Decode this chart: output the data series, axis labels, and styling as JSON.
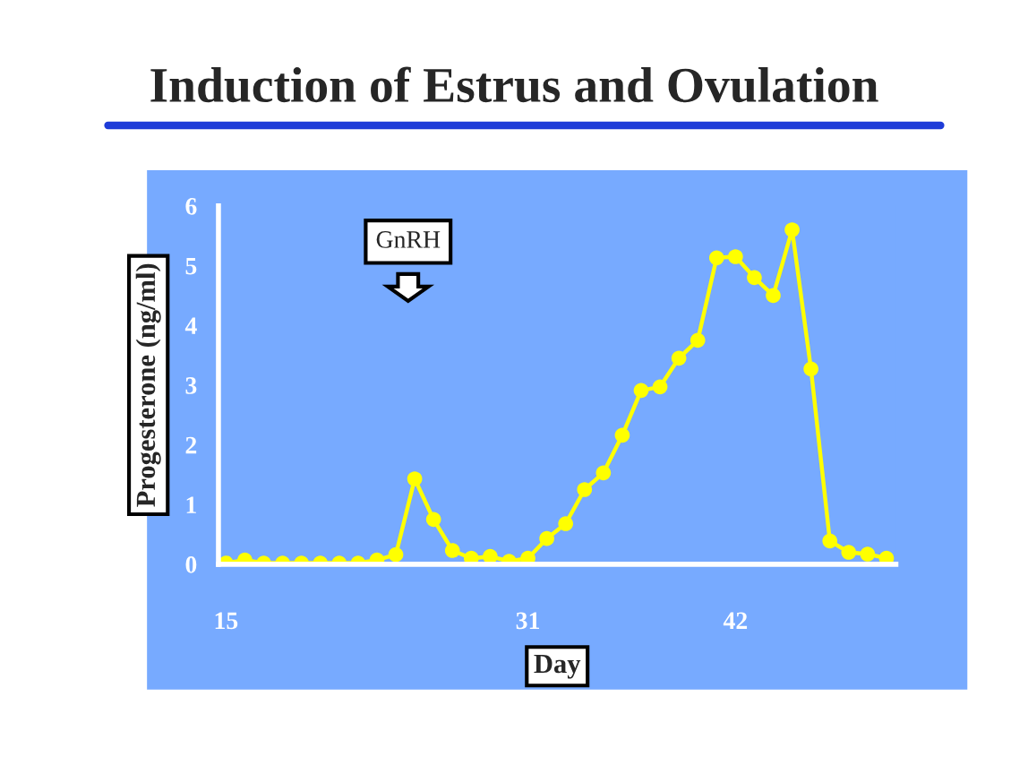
{
  "chart_data": {
    "type": "line",
    "title": "Induction of Estrus and Ovulation",
    "xlabel": "Day",
    "ylabel": "Progesterone (ng/ml)",
    "x": [
      15,
      16,
      17,
      18,
      19,
      20,
      21,
      22,
      23,
      24,
      25,
      26,
      27,
      28,
      29,
      30,
      31,
      32,
      33,
      34,
      35,
      36,
      37,
      38,
      39,
      40,
      41,
      42,
      43,
      44,
      45,
      46,
      47,
      48,
      49,
      50
    ],
    "series": [
      {
        "color": "#ffff00",
        "values": [
          0.02,
          0.07,
          0.02,
          0.02,
          0.02,
          0.02,
          0.02,
          0.02,
          0.07,
          0.16,
          1.43,
          0.75,
          0.23,
          0.1,
          0.13,
          0.05,
          0.1,
          0.43,
          0.68,
          1.25,
          1.53,
          2.16,
          2.91,
          2.97,
          3.45,
          3.75,
          5.13,
          5.15,
          4.8,
          4.5,
          5.6,
          3.27,
          0.39,
          0.2,
          0.17,
          0.1
        ]
      }
    ],
    "xlim": [
      14.6,
      50.5
    ],
    "xticks": [
      15,
      31,
      42
    ],
    "ylim": [
      0,
      6
    ],
    "yticks": [
      0,
      1,
      2,
      3,
      4,
      5,
      6
    ],
    "marker": "circle",
    "line_style": "solid",
    "grid": false,
    "legend": false,
    "annotations": [
      "GnRH"
    ]
  }
}
